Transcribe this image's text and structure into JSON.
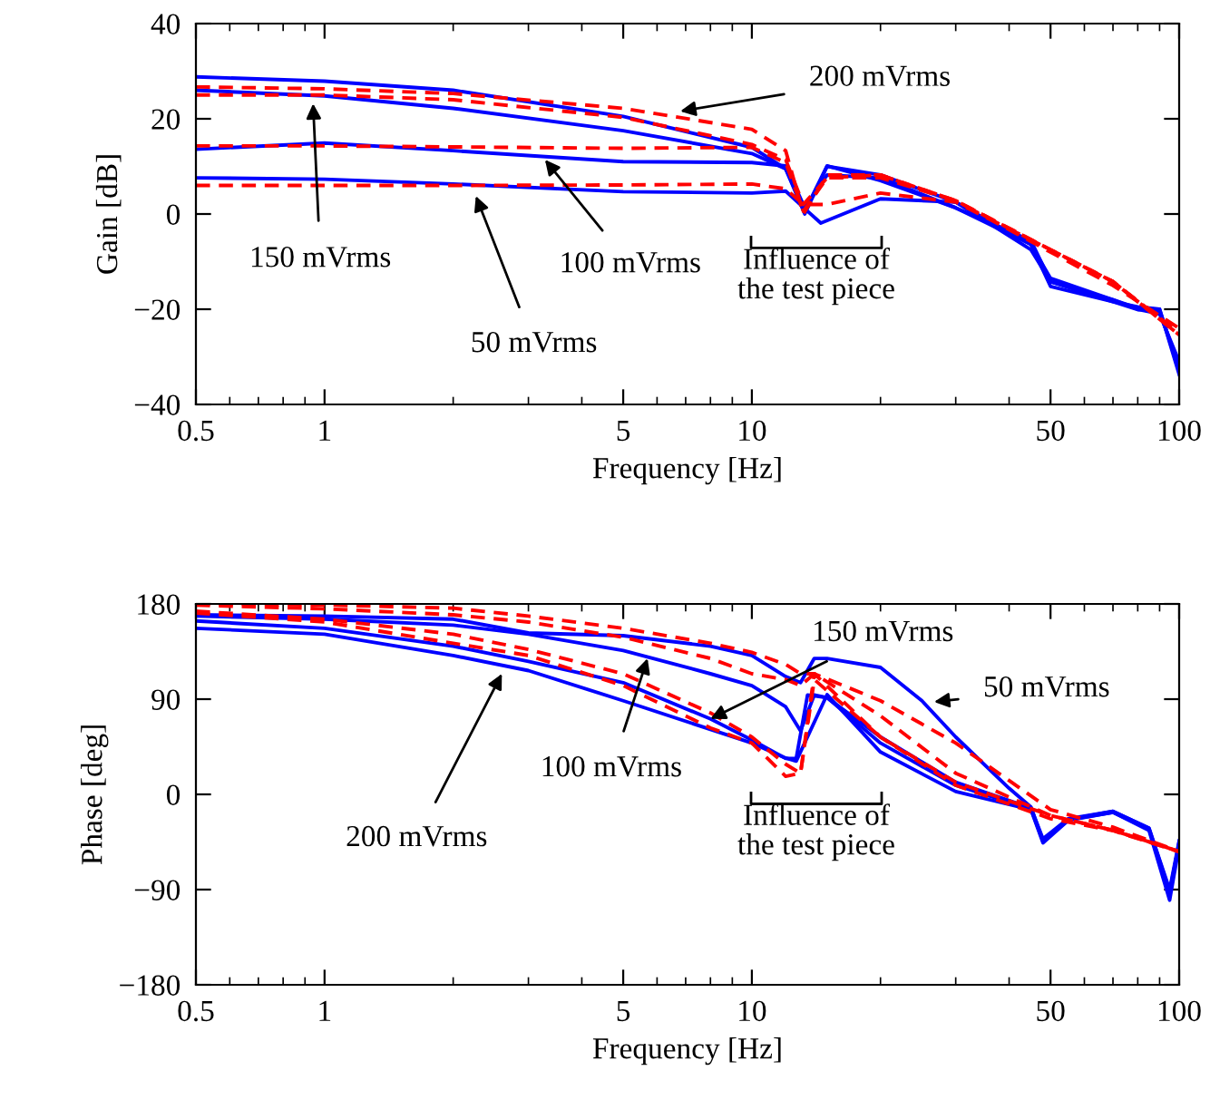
{
  "chart_data": [
    {
      "type": "line",
      "xlabel": "Frequency [Hz]",
      "ylabel": "Gain [dB]",
      "log": "x",
      "xlim": [
        0.5,
        100
      ],
      "xticks": [
        0.5,
        1,
        5,
        10,
        50,
        100
      ],
      "ylim": [
        -40,
        40
      ],
      "yticks": [
        {
          "value": -40,
          "label": "−40"
        },
        {
          "value": -20,
          "label": "−20"
        },
        0,
        20,
        40
      ],
      "series": [
        {
          "color": "#0000ff",
          "line_style": "solid",
          "x": [
            0.5,
            1,
            2,
            5,
            10,
            12,
            13.3,
            15,
            20,
            30,
            45,
            50,
            70,
            80,
            90,
            100
          ],
          "values": [
            28.8,
            27.9,
            26,
            20.5,
            14,
            9.5,
            0.6,
            10.1,
            7,
            1.3,
            -6.4,
            -15.2,
            -18.4,
            -20.1,
            -20,
            -33.7
          ]
        },
        {
          "color": "#0000ff",
          "line_style": "solid",
          "x": [
            0.5,
            1,
            2,
            5,
            10,
            12,
            13.3,
            15,
            20,
            30,
            45,
            50,
            70,
            80,
            90,
            100
          ],
          "values": [
            26,
            24.8,
            22.2,
            17.5,
            12.7,
            9.5,
            0,
            10,
            8.2,
            2.5,
            -7.5,
            -14.2,
            -18.4,
            -19.5,
            -20,
            -33
          ]
        },
        {
          "color": "#0000ff",
          "line_style": "solid",
          "x": [
            0.5,
            1,
            2,
            5,
            10,
            12,
            13.3,
            15,
            20,
            30,
            45,
            50,
            70,
            80,
            90,
            100
          ],
          "values": [
            13.6,
            14.9,
            13.3,
            11,
            10.8,
            10.1,
            1.3,
            8.2,
            7.6,
            1.3,
            -5.6,
            -14.2,
            -18,
            -19.8,
            -20.5,
            -32
          ]
        },
        {
          "color": "#0000ff",
          "line_style": "solid",
          "x": [
            0.5,
            1,
            2,
            5,
            10,
            12,
            13.5,
            14.5,
            20,
            30,
            45,
            50,
            70,
            80,
            90,
            100
          ],
          "values": [
            7.6,
            7.3,
            6.3,
            4.7,
            4.4,
            4.8,
            0.6,
            -1.9,
            3.2,
            2.5,
            -6.4,
            -13.5,
            -18,
            -20,
            -21,
            -31
          ]
        },
        {
          "color": "#ff0000",
          "line_style": "dashed",
          "x": [
            0.5,
            1,
            2,
            5,
            10,
            12,
            13.2,
            15,
            20,
            30,
            50,
            70,
            100
          ],
          "values": [
            26.7,
            26.3,
            25.3,
            22.2,
            17.8,
            13.3,
            0,
            8.2,
            8.2,
            2.8,
            -7.5,
            -14.2,
            -25.4
          ]
        },
        {
          "color": "#ff0000",
          "line_style": "dashed",
          "x": [
            0.5,
            1,
            2,
            5,
            10,
            12,
            13.2,
            15,
            20,
            30,
            50,
            70,
            100
          ],
          "values": [
            25,
            25,
            24,
            20.3,
            14.6,
            11.4,
            2,
            7.6,
            8.2,
            2.8,
            -8,
            -15,
            -24
          ]
        },
        {
          "color": "#ff0000",
          "line_style": "dashed",
          "x": [
            0.5,
            1,
            2,
            5,
            10,
            12,
            13.2,
            15,
            20,
            30,
            50,
            70,
            100
          ],
          "values": [
            14.3,
            14.3,
            14.1,
            13.8,
            14,
            10.8,
            0.6,
            7.6,
            7.6,
            2.8,
            -7.5,
            -14.2,
            -25
          ]
        },
        {
          "color": "#ff0000",
          "line_style": "dashed",
          "x": [
            0.5,
            1,
            2,
            5,
            10,
            12,
            13.2,
            15,
            20,
            30,
            50,
            70,
            100
          ],
          "values": [
            6,
            6,
            6,
            6.1,
            6.3,
            5.3,
            2,
            2,
            4.4,
            2.5,
            -7.5,
            -14.2,
            -25.4
          ]
        }
      ],
      "annotations": [
        {
          "text": "200 mVrms",
          "x": 6.8,
          "y": 21.6
        },
        {
          "text": "150 mVrms",
          "x": 0.94,
          "y": 23.2
        },
        {
          "text": "100 mVrms",
          "x": 3.28,
          "y": 11.4
        },
        {
          "text": "50 mVrms",
          "x": 2.26,
          "y": 3.8
        },
        "Influence of\nthe test piece"
      ]
    },
    {
      "type": "line",
      "xlabel": "Frequency [Hz]",
      "ylabel": "Phase [deg]",
      "log": "x",
      "xlim": [
        0.5,
        100
      ],
      "xticks": [
        0.5,
        1,
        5,
        10,
        50,
        100
      ],
      "ylim": [
        -180,
        180
      ],
      "yticks": [
        {
          "value": -180,
          "label": "−180"
        },
        {
          "value": -90,
          "label": "−90"
        },
        0,
        90,
        180
      ],
      "series": [
        {
          "color": "#0000ff",
          "line_style": "solid",
          "x": [
            0.5,
            1,
            2,
            3,
            5,
            10,
            12,
            12.7,
            15,
            20,
            30,
            45,
            48,
            55,
            70,
            85,
            95,
            100
          ],
          "values": [
            157,
            151.4,
            131.3,
            117,
            88.5,
            48.5,
            34.3,
            31.4,
            94.3,
            40,
            2.7,
            -14.4,
            -45.8,
            -24.6,
            -17,
            -34,
            -100,
            -48.6
          ]
        },
        {
          "color": "#0000ff",
          "line_style": "solid",
          "x": [
            0.5,
            1,
            2,
            3,
            5,
            8,
            10,
            12,
            12.7,
            13.5,
            15,
            20,
            30,
            45,
            48,
            55,
            70,
            85,
            95,
            100
          ],
          "values": [
            163.9,
            157,
            140,
            125.7,
            105.6,
            71.3,
            51.4,
            34,
            34,
            94,
            91.4,
            48.5,
            8.6,
            -14,
            -44,
            -24,
            -17,
            -33,
            -95,
            -45
          ]
        },
        {
          "color": "#0000ff",
          "line_style": "solid",
          "x": [
            0.5,
            1,
            2,
            3,
            5,
            8,
            10,
            12,
            13,
            14,
            15,
            20,
            30,
            45,
            48,
            55,
            70,
            85,
            95,
            100
          ],
          "values": [
            168.5,
            165.6,
            160,
            151.4,
            136,
            114,
            102.8,
            82.8,
            60,
            94,
            91.4,
            54.2,
            11.4,
            -13,
            -42,
            -23,
            -16,
            -32,
            -90,
            -44
          ]
        },
        {
          "color": "#0000ff",
          "line_style": "solid",
          "x": [
            0.5,
            1,
            2,
            3,
            5,
            8,
            10,
            12,
            13,
            14,
            15,
            20,
            25,
            30,
            40,
            45,
            48,
            55,
            70,
            85,
            95,
            100
          ],
          "values": [
            169.7,
            168.5,
            165.6,
            152.6,
            150,
            140,
            131.3,
            111.4,
            105.6,
            128.5,
            128.5,
            120,
            88.5,
            54.2,
            5.7,
            -12,
            -44,
            -24,
            -16,
            -32,
            -92,
            -46
          ]
        },
        {
          "color": "#ff0000",
          "line_style": "dashed",
          "x": [
            0.5,
            1,
            2,
            3,
            5,
            8,
            10,
            12,
            13,
            14,
            20,
            30,
            50,
            70,
            100
          ],
          "values": [
            171.4,
            162.9,
            142.8,
            131.3,
            102.8,
            62.8,
            48.5,
            17.1,
            20,
            114,
            54.2,
            8.6,
            -23,
            -34.3,
            -54.3
          ]
        },
        {
          "color": "#ff0000",
          "line_style": "dashed",
          "x": [
            0.5,
            1,
            2,
            3,
            5,
            8,
            10,
            12,
            13,
            14,
            20,
            30,
            50,
            70,
            100
          ],
          "values": [
            173.1,
            165.6,
            151.4,
            137,
            114,
            77,
            54.2,
            28.5,
            20,
            108.5,
            54.2,
            11.4,
            -20,
            -34,
            -54
          ]
        },
        {
          "color": "#ff0000",
          "line_style": "dashed",
          "x": [
            0.5,
            1,
            2,
            3,
            5,
            8,
            10,
            12,
            13,
            14,
            20,
            30,
            50,
            70,
            100
          ],
          "values": [
            178.8,
            175.4,
            169.7,
            162.9,
            148.5,
            128.5,
            114,
            108.5,
            102.8,
            114,
            74.2,
            20,
            -20,
            -34,
            -54
          ]
        },
        {
          "color": "#ff0000",
          "line_style": "dashed",
          "x": [
            0.5,
            1,
            2,
            3,
            5,
            8,
            10,
            12,
            13,
            14,
            20,
            30,
            50,
            70,
            100
          ],
          "values": [
            180,
            179,
            176,
            168.5,
            157,
            142.8,
            134.2,
            122.8,
            114,
            114,
            88.5,
            48.5,
            -14.4,
            -31,
            -54
          ]
        }
      ],
      "annotations": [
        {
          "text": "150 mVrms",
          "x": 8,
          "y": 71.3
        },
        {
          "text": "100 mVrms",
          "x": 5.7,
          "y": 128.5
        },
        {
          "text": "200 mVrms",
          "x": 2.6,
          "y": 114
        },
        {
          "text": "50 mVrms",
          "x": 26.7,
          "y": 87.4
        },
        "Influence of\nthe test piece"
      ]
    }
  ]
}
